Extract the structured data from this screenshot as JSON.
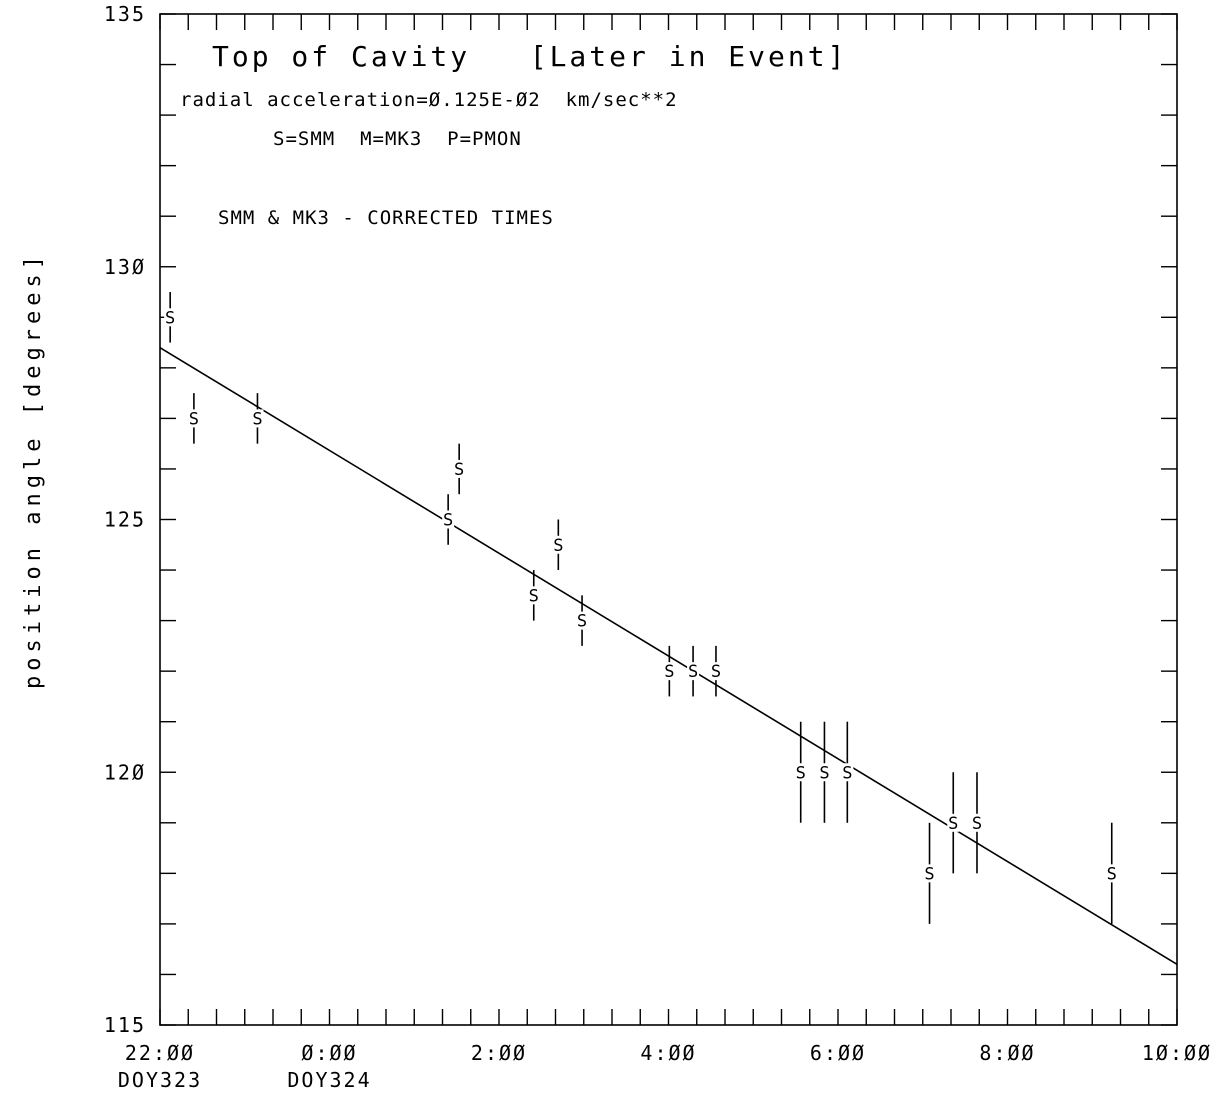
{
  "chart_data": {
    "type": "scatter",
    "title": "Top of Cavity   [Later in Event]",
    "annotations": [
      "radial acceleration=Ø.125E-Ø2  km/sec**2",
      "S=SMM  M=MK3  P=PMON",
      "SMM & MK3 - CORRECTED TIMES"
    ],
    "xlabel": "",
    "ylabel": "position angle [degrees]",
    "x_unit": "hours after 22:00 DOY323",
    "xlim": [
      0,
      12
    ],
    "ylim": [
      115,
      135
    ],
    "x_tick_labels": [
      {
        "x": 0,
        "label": "22:ØØ",
        "sublabel": "DOY323"
      },
      {
        "x": 2,
        "label": "Ø:ØØ",
        "sublabel": "DOY324"
      },
      {
        "x": 4,
        "label": "2:ØØ",
        "sublabel": ""
      },
      {
        "x": 6,
        "label": "4:ØØ",
        "sublabel": ""
      },
      {
        "x": 8,
        "label": "6:ØØ",
        "sublabel": ""
      },
      {
        "x": 10,
        "label": "8:ØØ",
        "sublabel": ""
      },
      {
        "x": 12,
        "label": "1Ø:ØØ",
        "sublabel": ""
      }
    ],
    "y_tick_labels": [
      {
        "y": 115,
        "label": "115"
      },
      {
        "y": 120,
        "label": "12Ø"
      },
      {
        "y": 125,
        "label": "125"
      },
      {
        "y": 130,
        "label": "13Ø"
      },
      {
        "y": 135,
        "label": "135"
      }
    ],
    "series": [
      {
        "marker": "S",
        "points": [
          {
            "x": 0.12,
            "y": 129.0,
            "err": 0.5
          },
          {
            "x": 0.4,
            "y": 127.0,
            "err": 0.5
          },
          {
            "x": 1.15,
            "y": 127.0,
            "err": 0.5
          },
          {
            "x": 3.4,
            "y": 125.0,
            "err": 0.5
          },
          {
            "x": 3.53,
            "y": 126.0,
            "err": 0.5
          },
          {
            "x": 4.41,
            "y": 123.5,
            "err": 0.5
          },
          {
            "x": 4.7,
            "y": 124.5,
            "err": 0.5
          },
          {
            "x": 4.98,
            "y": 123.0,
            "err": 0.5
          },
          {
            "x": 6.01,
            "y": 122.0,
            "err": 0.5
          },
          {
            "x": 6.29,
            "y": 122.0,
            "err": 0.5
          },
          {
            "x": 6.56,
            "y": 122.0,
            "err": 0.5
          },
          {
            "x": 7.56,
            "y": 120.0,
            "err": 1.0
          },
          {
            "x": 7.84,
            "y": 120.0,
            "err": 1.0
          },
          {
            "x": 8.11,
            "y": 120.0,
            "err": 1.0
          },
          {
            "x": 9.08,
            "y": 118.0,
            "err": 1.0
          },
          {
            "x": 9.36,
            "y": 119.0,
            "err": 1.0
          },
          {
            "x": 9.64,
            "y": 119.0,
            "err": 1.0
          },
          {
            "x": 11.23,
            "y": 118.0,
            "err": 1.0
          }
        ]
      }
    ],
    "fit_line": {
      "x": [
        0.0,
        12.0
      ],
      "y": [
        128.4,
        116.2
      ]
    }
  }
}
